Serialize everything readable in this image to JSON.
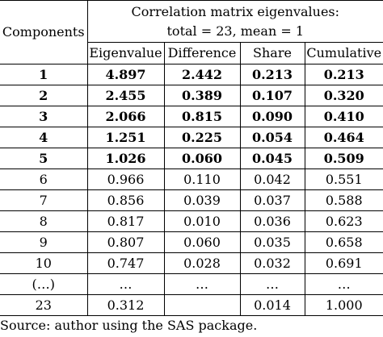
{
  "table": {
    "group_header_line1": "Correlation matrix eigenvalues:",
    "group_header_line2": "total = 23, mean = 1",
    "components_header": "Components",
    "columns": [
      "Eigenvalue",
      "Difference",
      "Share",
      "Cumulative"
    ],
    "rows": [
      {
        "comp": "1",
        "eig": "4.897",
        "diff": "2.442",
        "share": "0.213",
        "cum": "0.213",
        "bold": true
      },
      {
        "comp": "2",
        "eig": "2.455",
        "diff": "0.389",
        "share": "0.107",
        "cum": "0.320",
        "bold": true
      },
      {
        "comp": "3",
        "eig": "2.066",
        "diff": "0.815",
        "share": "0.090",
        "cum": "0.410",
        "bold": true
      },
      {
        "comp": "4",
        "eig": "1.251",
        "diff": "0.225",
        "share": "0.054",
        "cum": "0.464",
        "bold": true
      },
      {
        "comp": "5",
        "eig": "1.026",
        "diff": "0.060",
        "share": "0.045",
        "cum": "0.509",
        "bold": true
      },
      {
        "comp": "6",
        "eig": "0.966",
        "diff": "0.110",
        "share": "0.042",
        "cum": "0.551",
        "bold": false
      },
      {
        "comp": "7",
        "eig": "0.856",
        "diff": "0.039",
        "share": "0.037",
        "cum": "0.588",
        "bold": false
      },
      {
        "comp": "8",
        "eig": "0.817",
        "diff": "0.010",
        "share": "0.036",
        "cum": "0.623",
        "bold": false
      },
      {
        "comp": "9",
        "eig": "0.807",
        "diff": "0.060",
        "share": "0.035",
        "cum": "0.658",
        "bold": false
      },
      {
        "comp": "10",
        "eig": "0.747",
        "diff": "0.028",
        "share": "0.032",
        "cum": "0.691",
        "bold": false
      },
      {
        "comp": "(…)",
        "eig": "…",
        "diff": "…",
        "share": "…",
        "cum": "…",
        "bold": false
      },
      {
        "comp": "23",
        "eig": "0.312",
        "diff": "",
        "share": "0.014",
        "cum": "1.000",
        "bold": false
      }
    ]
  },
  "source_note": "Source: author using the SAS package."
}
